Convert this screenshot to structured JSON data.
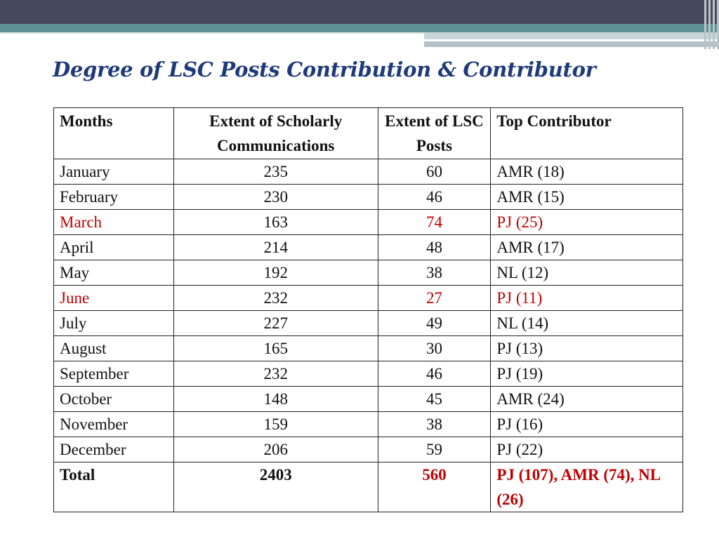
{
  "title": "Degree of LSC Posts Contribution & Contributor",
  "colors": {
    "title": "#1f3a7a",
    "highlight": "#c00000",
    "header_dark": "#474a5c",
    "header_teal": "#5d9294"
  },
  "table": {
    "headers": [
      "Months",
      "Extent of Scholarly Communications",
      "Extent of LSC Posts",
      "Top Contributor"
    ],
    "rows": [
      {
        "month": "January",
        "scholarly": "235",
        "posts": "60",
        "contributor": "AMR (18)"
      },
      {
        "month": "February",
        "scholarly": "230",
        "posts": "46",
        "contributor": "AMR (15)"
      },
      {
        "month": "March",
        "scholarly": "163",
        "posts": "74",
        "contributor": "PJ (25)"
      },
      {
        "month": "April",
        "scholarly": "214",
        "posts": "48",
        "contributor": "AMR (17)"
      },
      {
        "month": "May",
        "scholarly": "192",
        "posts": "38",
        "contributor": "NL (12)"
      },
      {
        "month": "June",
        "scholarly": "232",
        "posts": "27",
        "contributor": "PJ (11)"
      },
      {
        "month": "July",
        "scholarly": "227",
        "posts": "49",
        "contributor": "NL (14)"
      },
      {
        "month": "August",
        "scholarly": "165",
        "posts": "30",
        "contributor": "PJ (13)"
      },
      {
        "month": "September",
        "scholarly": "232",
        "posts": "46",
        "contributor": "PJ (19)"
      },
      {
        "month": "October",
        "scholarly": "148",
        "posts": "45",
        "contributor": "AMR (24)"
      },
      {
        "month": "November",
        "scholarly": "159",
        "posts": "38",
        "contributor": "PJ (16)"
      },
      {
        "month": "December",
        "scholarly": "206",
        "posts": "59",
        "contributor": "PJ (22)"
      }
    ],
    "highlighted_months": [
      "March",
      "June"
    ],
    "total": {
      "label": "Total",
      "scholarly": "2403",
      "posts": "560",
      "contributor": "PJ (107), AMR (74), NL (26)"
    }
  }
}
